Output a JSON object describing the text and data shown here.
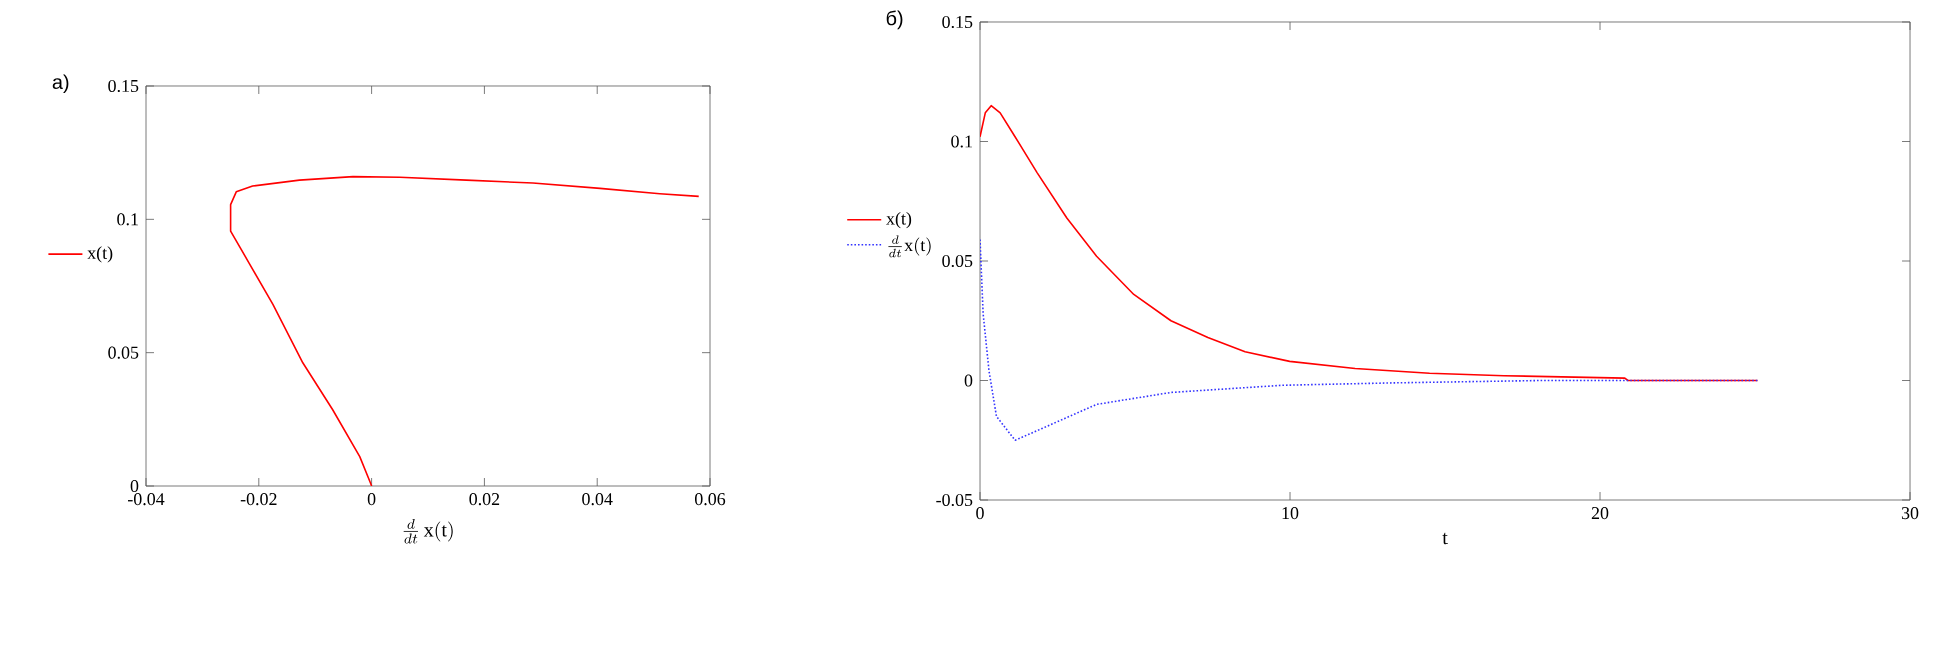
{
  "chart_data": [
    {
      "type": "line",
      "title": "а)",
      "xlabel": "\\frac{d}{dt}\\,\\mathrm{x(t)}",
      "xlim": [
        -0.04,
        0.06
      ],
      "ylim": [
        0,
        0.15
      ],
      "xticks": [
        -0.04,
        -0.02,
        0,
        0.02,
        0.04,
        0.06
      ],
      "yticks": [
        0,
        0.05,
        0.1,
        0.15
      ],
      "legend": "left",
      "grid": false,
      "series": [
        {
          "name": "x(t)",
          "color": "#ff0000",
          "line_style": "solid",
          "x": [
            0.058,
            0.0511,
            0.0405,
            0.0286,
            0.0168,
            0.005,
            -0.0033,
            -0.0128,
            -0.0211,
            -0.024,
            -0.025,
            -0.025,
            -0.0217,
            -0.0175,
            -0.0122,
            -0.0069,
            -0.0021,
            -0.0002,
            0
          ],
          "values": [
            0.1086,
            0.1096,
            0.1116,
            0.1136,
            0.1147,
            0.1158,
            0.116,
            0.1147,
            0.1125,
            0.1103,
            0.1055,
            0.0956,
            0.0835,
            0.0681,
            0.0462,
            0.0286,
            0.011,
            0.0011,
            0
          ]
        }
      ]
    },
    {
      "type": "line",
      "title": "б)",
      "xlabel": "t",
      "xlim": [
        0,
        30
      ],
      "ylim": [
        -0.05,
        0.15
      ],
      "xticks": [
        0,
        10,
        20,
        30
      ],
      "yticks": [
        -0.05,
        0,
        0.05,
        0.1,
        0.15
      ],
      "legend": "left",
      "grid": false,
      "series": [
        {
          "name": "x(t)",
          "color": "#ff0000",
          "line_style": "solid",
          "x": [
            0,
            0.17,
            0.36,
            0.65,
            1.13,
            1.84,
            2.8,
            3.76,
            4.96,
            6.16,
            7.35,
            8.55,
            9.99,
            12.1,
            14.5,
            16.9,
            20.8,
            20.9,
            25.08
          ],
          "values": [
            0.102,
            0.112,
            0.115,
            0.112,
            0.102,
            0.087,
            0.068,
            0.052,
            0.036,
            0.025,
            0.018,
            0.012,
            0.008,
            0.005,
            0.003,
            0.002,
            0.001,
            0,
            0
          ]
        },
        {
          "name": "\\frac{d}{dt}\\mathrm{x(t)}",
          "color": "#3333ff",
          "line_style": "dotted",
          "x": [
            0,
            0.1,
            0.29,
            0.53,
            1.13,
            1.84,
            3.76,
            6.16,
            9.75,
            13.3,
            18.1,
            25.08
          ],
          "values": [
            0.059,
            0.028,
            0.004,
            -0.015,
            -0.025,
            -0.021,
            -0.01,
            -0.005,
            -0.002,
            -0.001,
            0,
            0
          ]
        }
      ]
    }
  ]
}
